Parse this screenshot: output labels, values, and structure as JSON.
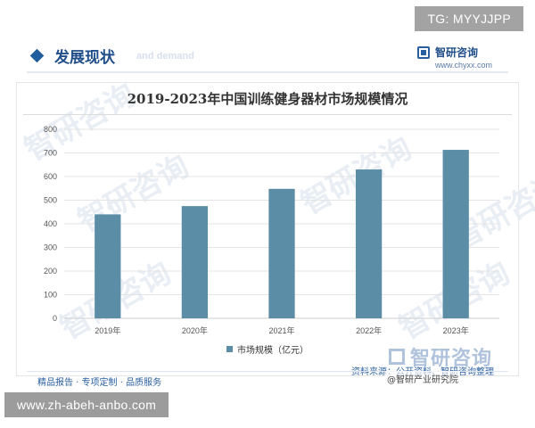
{
  "overlay": {
    "tg_text": "TG: MYYJJPP",
    "url_text": "www.zh-abeh-anbo.com"
  },
  "header": {
    "section_title": "发展现状",
    "ghost_text": "and demand",
    "brand_name": "智研咨询",
    "brand_url": "www.chyxx.com"
  },
  "watermark_text": "智研咨询",
  "bottom_logo": "智研咨询",
  "footer": {
    "services": "精品报告 · 专项定制 · 品质服务",
    "source": "资料来源：公开资料、智研咨询整理",
    "social_tag": "@智研产业研究院"
  },
  "chart_data": {
    "type": "bar",
    "title": "2019-2023年中国训练健身器材市场规模情况",
    "categories": [
      "2019年",
      "2020年",
      "2021年",
      "2022年",
      "2023年"
    ],
    "series": [
      {
        "name": "市场规模（亿元）",
        "values": [
          440,
          475,
          548,
          630,
          713
        ]
      }
    ],
    "ylim": [
      0,
      800
    ],
    "yticks": [
      0,
      100,
      200,
      300,
      400,
      500,
      600,
      700,
      800
    ],
    "grid": true,
    "legend": "bottom",
    "bar_color": "#5b8ea6"
  }
}
